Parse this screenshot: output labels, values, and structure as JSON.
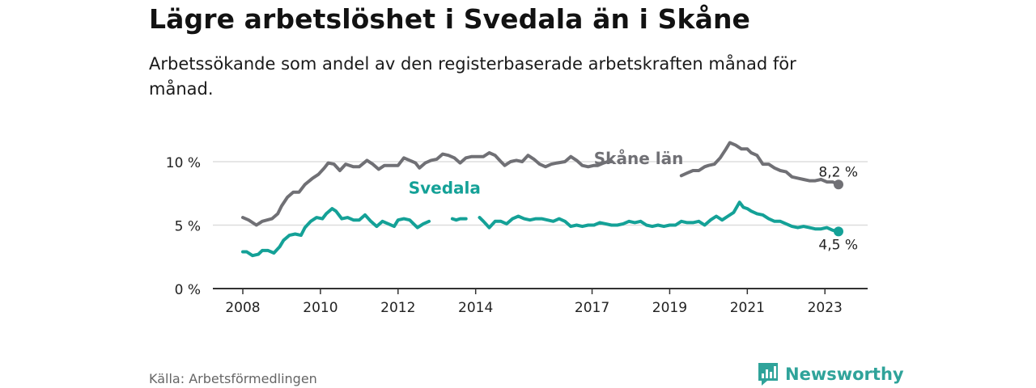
{
  "title": "Lägre arbetslöshet i Svedala än i Skåne",
  "subtitle": "Arbetssökande som andel av den registerbaserade arbetskraften månad för månad.",
  "source": "Källa: Arbetsförmedlingen",
  "brand": "Newsworthy",
  "colors": {
    "skane": "#707075",
    "svedala": "#14a197",
    "grid": "#dddddd",
    "brand": "#2fa39a"
  },
  "chart_data": {
    "type": "line",
    "xlim": [
      2008,
      2023.5
    ],
    "ylim": [
      0,
      11.5
    ],
    "x_ticks": [
      {
        "value": 2008,
        "label": "2008"
      },
      {
        "value": 2010,
        "label": "2010"
      },
      {
        "value": 2012,
        "label": "2012"
      },
      {
        "value": 2014,
        "label": "2014"
      },
      {
        "value": 2017,
        "label": "2017"
      },
      {
        "value": 2019,
        "label": "2019"
      },
      {
        "value": 2021,
        "label": "2021"
      },
      {
        "value": 2023,
        "label": "2023"
      }
    ],
    "y_ticks": [
      {
        "value": 0,
        "label": "0 %"
      },
      {
        "value": 5,
        "label": "5 %"
      },
      {
        "value": 10,
        "label": "10 %"
      }
    ],
    "series": [
      {
        "name": "Skåne län",
        "end_label": "8,2 %",
        "points": [
          [
            2008.0,
            5.6
          ],
          [
            2008.15,
            5.4
          ],
          [
            2008.35,
            5.0
          ],
          [
            2008.5,
            5.3
          ],
          [
            2008.75,
            5.5
          ],
          [
            2008.9,
            5.9
          ],
          [
            2009.0,
            6.5
          ],
          [
            2009.15,
            7.2
          ],
          [
            2009.3,
            7.6
          ],
          [
            2009.45,
            7.6
          ],
          [
            2009.6,
            8.2
          ],
          [
            2009.8,
            8.7
          ],
          [
            2009.95,
            9.0
          ],
          [
            2010.1,
            9.5
          ],
          [
            2010.2,
            9.9
          ],
          [
            2010.35,
            9.8
          ],
          [
            2010.5,
            9.3
          ],
          [
            2010.65,
            9.8
          ],
          [
            2010.85,
            9.6
          ],
          [
            2011.0,
            9.6
          ],
          [
            2011.2,
            10.1
          ],
          [
            2011.35,
            9.8
          ],
          [
            2011.5,
            9.4
          ],
          [
            2011.65,
            9.7
          ],
          [
            2011.85,
            9.7
          ],
          [
            2012.0,
            9.7
          ],
          [
            2012.15,
            10.3
          ],
          [
            2012.3,
            10.1
          ],
          [
            2012.45,
            9.9
          ],
          [
            2012.55,
            9.5
          ],
          [
            2012.7,
            9.9
          ],
          [
            2012.85,
            10.1
          ],
          [
            2013.0,
            10.2
          ],
          [
            2013.15,
            10.6
          ],
          [
            2013.3,
            10.5
          ],
          [
            2013.45,
            10.3
          ],
          [
            2013.6,
            9.9
          ],
          [
            2013.75,
            10.3
          ],
          [
            2013.9,
            10.4
          ],
          [
            2014.05,
            10.4
          ],
          [
            2014.2,
            10.4
          ],
          [
            2014.35,
            10.7
          ],
          [
            2014.5,
            10.5
          ],
          [
            2014.65,
            10.0
          ],
          [
            2014.75,
            9.7
          ],
          [
            2014.9,
            10.0
          ],
          [
            2015.05,
            10.1
          ],
          [
            2015.2,
            10.0
          ],
          [
            2015.35,
            10.5
          ],
          [
            2015.5,
            10.2
          ],
          [
            2015.65,
            9.8
          ],
          [
            2015.8,
            9.6
          ],
          [
            2015.95,
            9.8
          ],
          [
            2016.1,
            9.9
          ],
          [
            2016.3,
            10.0
          ],
          [
            2016.45,
            10.4
          ],
          [
            2016.6,
            10.1
          ],
          [
            2016.75,
            9.7
          ],
          [
            2016.9,
            9.6
          ],
          [
            2017.05,
            9.7
          ],
          [
            2017.15,
            9.7
          ],
          [
            2017.3,
            9.9
          ],
          [
            2017.4,
            10.0
          ],
          [
            2017.5,
            10.0
          ]
        ]
      },
      {
        "name": "Skåne län",
        "end_label": "8,2 %",
        "points": [
          [
            2019.3,
            8.9
          ],
          [
            2019.45,
            9.1
          ],
          [
            2019.6,
            9.3
          ],
          [
            2019.75,
            9.3
          ],
          [
            2019.9,
            9.6
          ],
          [
            2020.0,
            9.7
          ],
          [
            2020.15,
            9.8
          ],
          [
            2020.3,
            10.3
          ],
          [
            2020.45,
            11.0
          ],
          [
            2020.55,
            11.5
          ],
          [
            2020.7,
            11.3
          ],
          [
            2020.85,
            11.0
          ],
          [
            2021.0,
            11.0
          ],
          [
            2021.1,
            10.7
          ],
          [
            2021.25,
            10.5
          ],
          [
            2021.4,
            9.8
          ],
          [
            2021.55,
            9.8
          ],
          [
            2021.7,
            9.5
          ],
          [
            2021.85,
            9.3
          ],
          [
            2022.0,
            9.2
          ],
          [
            2022.15,
            8.8
          ],
          [
            2022.3,
            8.7
          ],
          [
            2022.45,
            8.6
          ],
          [
            2022.6,
            8.5
          ],
          [
            2022.75,
            8.5
          ],
          [
            2022.9,
            8.6
          ],
          [
            2023.05,
            8.4
          ],
          [
            2023.2,
            8.4
          ],
          [
            2023.35,
            8.2
          ]
        ]
      },
      {
        "name": "Svedala",
        "end_label": "4,5 %",
        "points": [
          [
            2008.0,
            2.9
          ],
          [
            2008.1,
            2.9
          ],
          [
            2008.25,
            2.6
          ],
          [
            2008.4,
            2.7
          ],
          [
            2008.5,
            3.0
          ],
          [
            2008.65,
            3.0
          ],
          [
            2008.8,
            2.8
          ],
          [
            2008.95,
            3.3
          ],
          [
            2009.05,
            3.8
          ],
          [
            2009.2,
            4.2
          ],
          [
            2009.35,
            4.3
          ],
          [
            2009.5,
            4.2
          ],
          [
            2009.6,
            4.8
          ],
          [
            2009.75,
            5.3
          ],
          [
            2009.9,
            5.6
          ],
          [
            2010.05,
            5.5
          ],
          [
            2010.15,
            5.9
          ],
          [
            2010.3,
            6.3
          ],
          [
            2010.4,
            6.1
          ],
          [
            2010.55,
            5.5
          ],
          [
            2010.7,
            5.6
          ],
          [
            2010.85,
            5.4
          ],
          [
            2011.0,
            5.4
          ],
          [
            2011.15,
            5.8
          ],
          [
            2011.3,
            5.3
          ],
          [
            2011.45,
            4.9
          ],
          [
            2011.6,
            5.3
          ],
          [
            2011.75,
            5.1
          ],
          [
            2011.9,
            4.9
          ],
          [
            2012.0,
            5.4
          ],
          [
            2012.15,
            5.5
          ],
          [
            2012.3,
            5.4
          ],
          [
            2012.4,
            5.1
          ],
          [
            2012.5,
            4.8
          ],
          [
            2012.65,
            5.1
          ],
          [
            2012.8,
            5.3
          ]
        ]
      },
      {
        "name": "Svedala",
        "end_label": "4,5 %",
        "points": [
          [
            2013.4,
            5.5
          ],
          [
            2013.5,
            5.4
          ],
          [
            2013.6,
            5.5
          ],
          [
            2013.75,
            5.5
          ]
        ]
      },
      {
        "name": "Svedala",
        "end_label": "4,5 %",
        "points": [
          [
            2014.1,
            5.6
          ],
          [
            2014.2,
            5.3
          ],
          [
            2014.35,
            4.8
          ],
          [
            2014.5,
            5.3
          ],
          [
            2014.65,
            5.3
          ],
          [
            2014.8,
            5.1
          ],
          [
            2014.95,
            5.5
          ],
          [
            2015.1,
            5.7
          ],
          [
            2015.25,
            5.5
          ],
          [
            2015.4,
            5.4
          ],
          [
            2015.55,
            5.5
          ],
          [
            2015.7,
            5.5
          ],
          [
            2015.85,
            5.4
          ],
          [
            2016.0,
            5.3
          ],
          [
            2016.15,
            5.5
          ],
          [
            2016.3,
            5.3
          ],
          [
            2016.45,
            4.9
          ],
          [
            2016.6,
            5.0
          ],
          [
            2016.75,
            4.9
          ],
          [
            2016.9,
            5.0
          ],
          [
            2017.05,
            5.0
          ],
          [
            2017.2,
            5.2
          ],
          [
            2017.35,
            5.1
          ],
          [
            2017.5,
            5.0
          ],
          [
            2017.65,
            5.0
          ],
          [
            2017.8,
            5.1
          ],
          [
            2017.95,
            5.3
          ],
          [
            2018.1,
            5.2
          ],
          [
            2018.25,
            5.3
          ],
          [
            2018.4,
            5.0
          ],
          [
            2018.55,
            4.9
          ],
          [
            2018.7,
            5.0
          ],
          [
            2018.85,
            4.9
          ],
          [
            2019.0,
            5.0
          ],
          [
            2019.15,
            5.0
          ],
          [
            2019.3,
            5.3
          ],
          [
            2019.45,
            5.2
          ],
          [
            2019.6,
            5.2
          ],
          [
            2019.75,
            5.3
          ],
          [
            2019.9,
            5.0
          ],
          [
            2020.05,
            5.4
          ],
          [
            2020.2,
            5.7
          ],
          [
            2020.35,
            5.4
          ],
          [
            2020.5,
            5.7
          ],
          [
            2020.65,
            6.0
          ],
          [
            2020.8,
            6.8
          ],
          [
            2020.9,
            6.4
          ],
          [
            2021.0,
            6.3
          ],
          [
            2021.1,
            6.1
          ],
          [
            2021.25,
            5.9
          ],
          [
            2021.4,
            5.8
          ],
          [
            2021.55,
            5.5
          ],
          [
            2021.7,
            5.3
          ],
          [
            2021.85,
            5.3
          ],
          [
            2022.0,
            5.1
          ],
          [
            2022.15,
            4.9
          ],
          [
            2022.3,
            4.8
          ],
          [
            2022.45,
            4.9
          ],
          [
            2022.6,
            4.8
          ],
          [
            2022.75,
            4.7
          ],
          [
            2022.9,
            4.7
          ],
          [
            2023.05,
            4.8
          ],
          [
            2023.2,
            4.6
          ],
          [
            2023.35,
            4.5
          ]
        ]
      }
    ],
    "labels": [
      {
        "text": "Skåne län",
        "series": "Skåne län",
        "x": 2018.2,
        "y": 9.8
      },
      {
        "text": "Svedala",
        "series": "Svedala",
        "x": 2013.2,
        "y": 7.5
      }
    ]
  }
}
